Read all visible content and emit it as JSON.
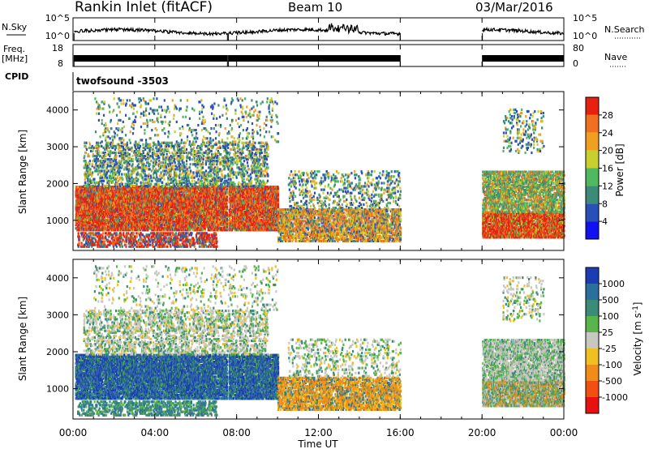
{
  "header": {
    "title": "Rankin Inlet (fitACF)",
    "beam": "Beam 10",
    "date": "03/Mar/2016"
  },
  "noise_panel": {
    "left_label": "N.Sky",
    "right_label": "N.Search",
    "ticks": [
      "10^5",
      "10^0"
    ]
  },
  "freq_panel": {
    "left_label_1": "Freq.",
    "left_label_2": "[MHz]",
    "left_ticks": [
      "18",
      "8"
    ],
    "right_label": "Nave",
    "right_ticks": [
      "80",
      "0"
    ]
  },
  "cpid": {
    "label": "CPID",
    "value": "twofsound -3503"
  },
  "chart_data": [
    {
      "type": "heatmap",
      "name": "power",
      "ylabel": "Slant Range [km]",
      "yticks": [
        "1000",
        "2000",
        "3000",
        "4000"
      ],
      "ylim": [
        180,
        4500
      ],
      "colorbar": {
        "label": "Power [dB]",
        "ticks": [
          "4",
          "8",
          "12",
          "16",
          "20",
          "24",
          "28"
        ],
        "range": [
          0,
          32
        ],
        "colors": [
          "#1010f0",
          "#2850b8",
          "#3c8a78",
          "#50b860",
          "#c8d030",
          "#f0a020",
          "#f07020",
          "#e82010"
        ]
      }
    },
    {
      "type": "heatmap",
      "name": "velocity",
      "ylabel": "Slant Range [km]",
      "yticks": [
        "1000",
        "2000",
        "3000",
        "4000"
      ],
      "ylim": [
        180,
        4500
      ],
      "colorbar": {
        "label": "Velocity [m s^-1]",
        "ticks": [
          "1000",
          "500",
          "100",
          "25",
          "-25",
          "-100",
          "-500",
          "-1000"
        ],
        "colors": [
          "#1c3cb4",
          "#2c6e9c",
          "#3c8a78",
          "#5ab44c",
          "#c8c8c0",
          "#f0c020",
          "#f08c18",
          "#f05010",
          "#e81010"
        ]
      }
    }
  ],
  "time_axis": {
    "xlabel": "Time UT",
    "ticks": [
      "00:00",
      "04:00",
      "08:00",
      "12:00",
      "16:00",
      "20:00",
      "00:00"
    ],
    "range_hours": [
      0,
      24
    ],
    "data_gap_hours": [
      16,
      20
    ]
  }
}
